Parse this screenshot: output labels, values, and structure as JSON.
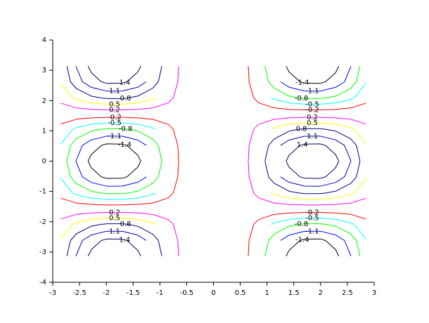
{
  "chart_data": {
    "type": "contour",
    "xlim": [
      -3,
      3
    ],
    "ylim": [
      -4,
      4
    ],
    "xticks": [
      -3,
      -2.5,
      -2,
      -1.5,
      -1,
      -0.5,
      0,
      0.5,
      1,
      1.5,
      2,
      2.5,
      3
    ],
    "yticks": [
      -4,
      -3,
      -2,
      -1,
      0,
      1,
      2,
      3,
      4
    ],
    "levels": [
      -1.4,
      -1.1,
      -0.8,
      -0.5,
      -0.2,
      0.2,
      0.5,
      0.8,
      1.1,
      1.4
    ],
    "level_colors": [
      "#000000",
      "#0000ff",
      "#00ff00",
      "#00ffff",
      "#ff0000",
      "#ff00ff",
      "#ffff00",
      "#000080",
      "#0000c0",
      "#000060"
    ],
    "y": [
      -3.14,
      -2.62,
      -2.09,
      -1.57,
      -1.05,
      -0.52,
      0,
      0.52,
      1.05,
      1.57,
      2.09,
      2.62,
      3.14
    ],
    "surfaces": [
      {
        "x": [
          -2.85,
          -2.56,
          -2.28,
          -1.99,
          -1.7,
          -1.41,
          -1.13,
          -0.84,
          -0.55
        ],
        "z": [
          [
            0.6,
            1.11,
            1.48,
            1.68,
            1.67,
            1.47,
            1.1,
            0.58,
            0
          ],
          [
            0.52,
            0.97,
            1.29,
            1.46,
            1.45,
            1.28,
            0.96,
            0.5,
            0
          ],
          [
            0.3,
            0.56,
            0.74,
            0.84,
            0.84,
            0.74,
            0.55,
            0.29,
            0
          ],
          [
            0,
            0,
            0,
            0,
            0,
            0,
            0,
            0,
            0
          ],
          [
            -0.3,
            -0.56,
            -0.74,
            -0.84,
            -0.84,
            -0.74,
            -0.55,
            -0.29,
            0
          ],
          [
            -0.52,
            -0.97,
            -1.29,
            -1.46,
            -1.45,
            -1.28,
            -0.96,
            -0.5,
            0
          ],
          [
            -0.6,
            -1.11,
            -1.48,
            -1.68,
            -1.67,
            -1.47,
            -1.1,
            -0.58,
            0
          ],
          [
            -0.52,
            -0.97,
            -1.29,
            -1.46,
            -1.45,
            -1.28,
            -0.96,
            -0.5,
            0
          ],
          [
            -0.3,
            -0.56,
            -0.74,
            -0.84,
            -0.84,
            -0.74,
            -0.55,
            -0.29,
            0
          ],
          [
            0,
            0,
            0,
            0,
            0,
            0,
            0,
            0,
            0
          ],
          [
            0.3,
            0.56,
            0.74,
            0.84,
            0.84,
            0.74,
            0.55,
            0.29,
            0
          ],
          [
            0.52,
            0.97,
            1.29,
            1.46,
            1.45,
            1.28,
            0.96,
            0.5,
            0
          ],
          [
            0.6,
            1.11,
            1.48,
            1.68,
            1.67,
            1.47,
            1.1,
            0.58,
            0
          ]
        ]
      },
      {
        "x": [
          0.55,
          0.84,
          1.13,
          1.41,
          1.7,
          1.99,
          2.28,
          2.56,
          2.85
        ],
        "z": [
          [
            0,
            -0.58,
            -1.1,
            -1.47,
            -1.67,
            -1.68,
            -1.48,
            -1.11,
            -0.6
          ],
          [
            0,
            -0.5,
            -0.96,
            -1.28,
            -1.45,
            -1.46,
            -1.29,
            -0.97,
            -0.52
          ],
          [
            0,
            -0.29,
            -0.55,
            -0.74,
            -0.84,
            -0.84,
            -0.74,
            -0.56,
            -0.3
          ],
          [
            0,
            0,
            0,
            0,
            0,
            0,
            0,
            0,
            0
          ],
          [
            0,
            0.29,
            0.55,
            0.74,
            0.84,
            0.84,
            0.74,
            0.56,
            0.3
          ],
          [
            0,
            0.5,
            0.96,
            1.28,
            1.45,
            1.46,
            1.29,
            0.97,
            0.52
          ],
          [
            0,
            0.58,
            1.1,
            1.47,
            1.67,
            1.68,
            1.48,
            1.11,
            0.6
          ],
          [
            0,
            0.5,
            0.96,
            1.28,
            1.45,
            1.46,
            1.29,
            0.97,
            0.52
          ],
          [
            0,
            0.29,
            0.55,
            0.74,
            0.84,
            0.84,
            0.74,
            0.56,
            0.3
          ],
          [
            0,
            0,
            0,
            0,
            0,
            0,
            0,
            0,
            0
          ],
          [
            0,
            -0.29,
            -0.55,
            -0.74,
            -0.84,
            -0.84,
            -0.74,
            -0.56,
            -0.3
          ],
          [
            0,
            -0.5,
            -0.96,
            -1.28,
            -1.45,
            -1.46,
            -1.29,
            -0.97,
            -0.52
          ],
          [
            0,
            -0.58,
            -1.1,
            -1.47,
            -1.67,
            -1.68,
            -1.48,
            -1.11,
            -0.6
          ]
        ]
      }
    ]
  }
}
